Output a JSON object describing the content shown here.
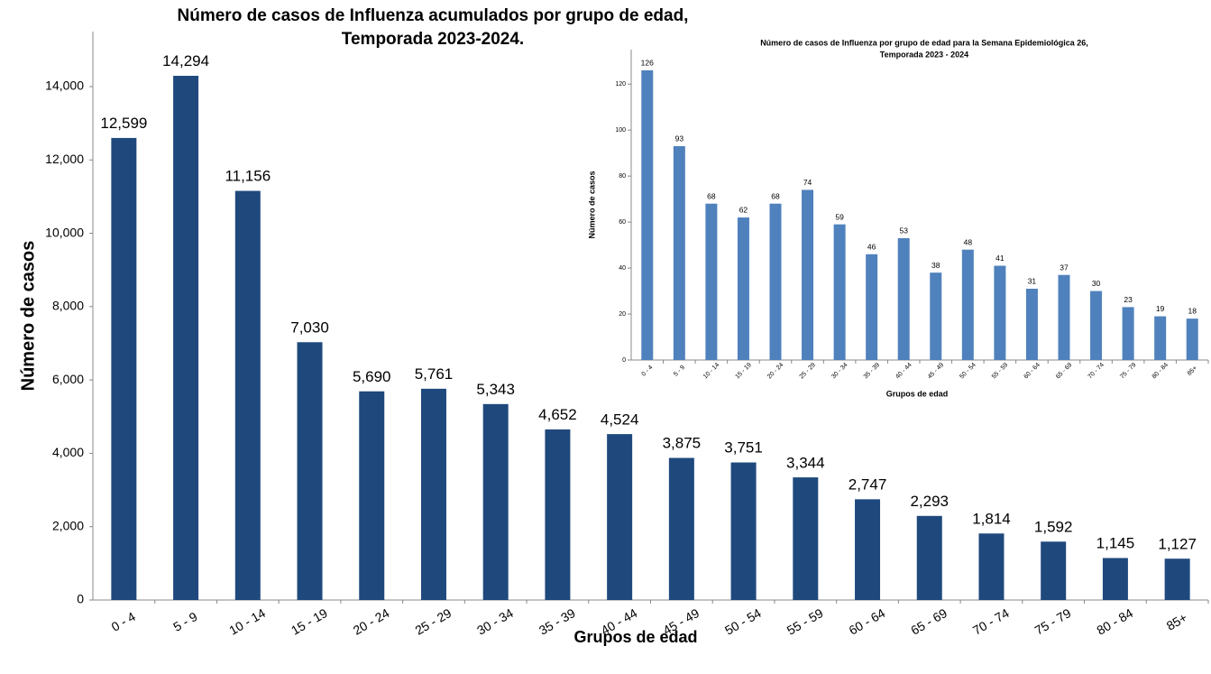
{
  "chart_data": [
    {
      "type": "bar",
      "title": [
        "Número de casos de Influenza acumulados por grupo de edad,",
        "Temporada 2023-2024."
      ],
      "x_label": "Grupos de edad",
      "y_label": "Número de casos",
      "categories": [
        "0 - 4",
        "5 - 9",
        "10 - 14",
        "15 - 19",
        "20 - 24",
        "25 - 29",
        "30 - 34",
        "35 - 39",
        "40 - 44",
        "45 - 49",
        "50 - 54",
        "55 - 59",
        "60 - 64",
        "65 - 69",
        "70 - 74",
        "75 - 79",
        "80 - 84",
        "85+"
      ],
      "values": [
        12599,
        14294,
        11156,
        7030,
        5690,
        5761,
        5343,
        4652,
        4524,
        3875,
        3751,
        3344,
        2747,
        2293,
        1814,
        1592,
        1145,
        1127
      ],
      "value_labels": [
        "12,599",
        "14,294",
        "11,156",
        "7,030",
        "5,690",
        "5,761",
        "5,343",
        "4,652",
        "4,524",
        "3,875",
        "3,751",
        "3,344",
        "2,747",
        "2,293",
        "1,814",
        "1,592",
        "1,145",
        "1,127"
      ],
      "color": "#1f497d",
      "ylim": [
        0,
        15500
      ],
      "yticks": [
        0,
        {
          "value": 2000,
          "label": "2,000"
        },
        {
          "value": 4000,
          "label": "4,000"
        },
        {
          "value": 6000,
          "label": "6,000"
        },
        {
          "value": 8000,
          "label": "8,000"
        },
        {
          "value": 10000,
          "label": "10,000"
        },
        {
          "value": 12000,
          "label": "12,000"
        },
        {
          "value": 14000,
          "label": "14,000"
        }
      ]
    },
    {
      "type": "bar",
      "title": [
        "Número de casos de Influenza por grupo de edad para la Semana Epidemiológica 26,",
        "Temporada  2023 - 2024"
      ],
      "x_label": "Grupos de edad",
      "y_label": "Número de casos",
      "categories": [
        "0 - 4",
        "5 - 9",
        "10 - 14",
        "15 - 19",
        "20 - 24",
        "25 - 29",
        "30 - 34",
        "35 - 39",
        "40 - 44",
        "45 - 49",
        "50 - 54",
        "55 - 59",
        "60 - 64",
        "65 - 69",
        "70 - 74",
        "75 - 79",
        "80 - 84",
        "85+"
      ],
      "values": [
        126,
        93,
        68,
        62,
        68,
        74,
        59,
        46,
        53,
        38,
        48,
        41,
        31,
        37,
        30,
        23,
        19,
        18
      ],
      "color": "#4f81bd",
      "ylim": [
        0,
        135
      ],
      "yticks": [
        0,
        20,
        40,
        60,
        80,
        100,
        120
      ]
    }
  ]
}
